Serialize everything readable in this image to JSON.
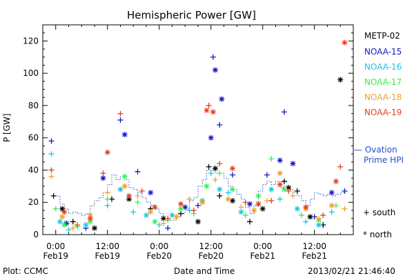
{
  "chart_data": {
    "type": "scatter",
    "title": "Hemispheric Power [GW]",
    "xlabel": "Date and Time",
    "ylabel": "P [GW]",
    "ylim": [
      0,
      130
    ],
    "yticks": [
      0,
      20,
      40,
      60,
      80,
      100,
      120
    ],
    "xlim_hours": [
      -3,
      69
    ],
    "xticks": [
      {
        "hours": 0,
        "time": "0:00",
        "date": "Feb19"
      },
      {
        "hours": 12,
        "time": "12:00",
        "date": "Feb19"
      },
      {
        "hours": 24,
        "time": "0:00",
        "date": "Feb20"
      },
      {
        "hours": 36,
        "time": "12:00",
        "date": "Feb20"
      },
      {
        "hours": 48,
        "time": "0:00",
        "date": "Feb21"
      },
      {
        "hours": 60,
        "time": "12:00",
        "date": "Feb21"
      }
    ],
    "x_unit_note": "hours after 2013-02-19 00:00 UT",
    "series": [
      {
        "name": "METP-02",
        "color": "#000000",
        "points": [
          [
            -0.5,
            24
          ],
          [
            1.5,
            16
          ],
          [
            4,
            8
          ],
          [
            9,
            4
          ],
          [
            13,
            22
          ],
          [
            17,
            22
          ],
          [
            22,
            16
          ],
          [
            25,
            10
          ],
          [
            29,
            13
          ],
          [
            33,
            8
          ],
          [
            35.5,
            42
          ],
          [
            37,
            41
          ],
          [
            38,
            24
          ],
          [
            41,
            21
          ],
          [
            45,
            8
          ],
          [
            48,
            16
          ],
          [
            53,
            33
          ],
          [
            54,
            29
          ],
          [
            56,
            27
          ],
          [
            59,
            11
          ],
          [
            62,
            6
          ],
          [
            66,
            96
          ]
        ]
      },
      {
        "name": "NOAA-15",
        "color": "#1414c8",
        "points": [
          [
            -1,
            58
          ],
          [
            2.5,
            7
          ],
          [
            7,
            4
          ],
          [
            11,
            35
          ],
          [
            15,
            71
          ],
          [
            16,
            62
          ],
          [
            19,
            39
          ],
          [
            22,
            26
          ],
          [
            26,
            4
          ],
          [
            30,
            17
          ],
          [
            33,
            18
          ],
          [
            36,
            60
          ],
          [
            36.5,
            110
          ],
          [
            37,
            102
          ],
          [
            38,
            68
          ],
          [
            38.5,
            84
          ],
          [
            41,
            37
          ],
          [
            45,
            19
          ],
          [
            49,
            37
          ],
          [
            52,
            46
          ],
          [
            53,
            76
          ],
          [
            55,
            44
          ],
          [
            60,
            11
          ],
          [
            64,
            26
          ],
          [
            67,
            27
          ]
        ]
      },
      {
        "name": "NOAA-16",
        "color": "#14c8e6",
        "points": [
          [
            -1,
            50
          ],
          [
            1,
            8
          ],
          [
            3,
            3
          ],
          [
            7,
            6
          ],
          [
            12,
            18
          ],
          [
            15,
            28
          ],
          [
            18,
            14
          ],
          [
            21,
            12
          ],
          [
            24,
            6
          ],
          [
            27,
            12
          ],
          [
            31,
            15
          ],
          [
            34,
            21
          ],
          [
            36,
            38
          ],
          [
            38,
            28
          ],
          [
            40,
            26
          ],
          [
            43,
            14
          ],
          [
            47,
            19
          ],
          [
            50,
            28
          ],
          [
            52,
            22
          ],
          [
            56,
            16
          ],
          [
            58,
            8
          ],
          [
            61,
            6
          ],
          [
            64,
            14
          ]
        ]
      },
      {
        "name": "NOAA-17",
        "color": "#32f050",
        "points": [
          [
            0,
            16
          ],
          [
            2,
            6
          ],
          [
            5,
            5
          ],
          [
            8,
            8
          ],
          [
            12,
            22
          ],
          [
            16,
            36
          ],
          [
            19,
            20
          ],
          [
            23,
            8
          ],
          [
            26,
            9
          ],
          [
            29,
            16
          ],
          [
            32,
            13
          ],
          [
            35,
            30
          ],
          [
            38,
            38
          ],
          [
            41,
            28
          ],
          [
            44,
            12
          ],
          [
            47,
            24
          ],
          [
            50,
            47
          ],
          [
            53,
            28
          ],
          [
            57,
            12
          ],
          [
            61,
            9
          ],
          [
            65,
            18
          ]
        ]
      },
      {
        "name": "NOAA-18",
        "color": "#f0a028",
        "points": [
          [
            -1,
            36
          ],
          [
            1.5,
            11
          ],
          [
            4,
            4
          ],
          [
            8,
            12
          ],
          [
            12,
            26
          ],
          [
            16,
            30
          ],
          [
            19,
            24
          ],
          [
            22,
            14
          ],
          [
            25,
            7
          ],
          [
            28,
            11
          ],
          [
            31,
            22
          ],
          [
            34,
            20
          ],
          [
            37,
            34
          ],
          [
            40,
            22
          ],
          [
            43,
            17
          ],
          [
            46,
            15
          ],
          [
            49,
            21
          ],
          [
            52,
            38
          ],
          [
            55,
            24
          ],
          [
            58,
            16
          ],
          [
            61,
            10
          ],
          [
            64,
            18
          ],
          [
            67,
            16
          ]
        ]
      },
      {
        "name": "NOAA-19",
        "color": "#e63c1e",
        "points": [
          [
            -1,
            40
          ],
          [
            2,
            14
          ],
          [
            5,
            6
          ],
          [
            8,
            10
          ],
          [
            11,
            38
          ],
          [
            12,
            51
          ],
          [
            15,
            75
          ],
          [
            17,
            24
          ],
          [
            20,
            27
          ],
          [
            23,
            17
          ],
          [
            26,
            10
          ],
          [
            29,
            19
          ],
          [
            32,
            15
          ],
          [
            35,
            77
          ],
          [
            35.5,
            80
          ],
          [
            36.5,
            76
          ],
          [
            38,
            44
          ],
          [
            41,
            41
          ],
          [
            44,
            20
          ],
          [
            47,
            19
          ],
          [
            50,
            21
          ],
          [
            52,
            31
          ],
          [
            54,
            27
          ],
          [
            58,
            17
          ],
          [
            62,
            12
          ],
          [
            65,
            33
          ],
          [
            66,
            42
          ],
          [
            67,
            119
          ]
        ]
      }
    ],
    "ovation": {
      "name": "Ovation Prime HPI",
      "color": "#1e50c8",
      "points": [
        [
          0,
          24
        ],
        [
          1,
          19
        ],
        [
          2,
          16
        ],
        [
          3,
          13
        ],
        [
          4,
          14
        ],
        [
          5,
          13
        ],
        [
          6,
          12
        ],
        [
          7,
          13
        ],
        [
          8,
          18
        ],
        [
          9,
          21
        ],
        [
          10,
          23
        ],
        [
          11,
          26
        ],
        [
          12,
          31
        ],
        [
          13,
          37
        ],
        [
          14,
          34
        ],
        [
          15,
          36
        ],
        [
          16,
          34
        ],
        [
          17,
          29
        ],
        [
          18,
          28
        ],
        [
          19,
          26
        ],
        [
          20,
          23
        ],
        [
          21,
          20
        ],
        [
          22,
          18
        ],
        [
          23,
          16
        ],
        [
          24,
          13
        ],
        [
          25,
          10
        ],
        [
          26,
          9
        ],
        [
          27,
          9
        ],
        [
          28,
          11
        ],
        [
          29,
          13
        ],
        [
          30,
          16
        ],
        [
          31,
          21
        ],
        [
          32,
          23
        ],
        [
          33,
          30
        ],
        [
          34,
          34
        ],
        [
          35,
          40
        ],
        [
          36,
          40
        ],
        [
          37,
          38
        ],
        [
          38,
          38
        ],
        [
          39,
          35
        ],
        [
          40,
          30
        ],
        [
          41,
          28
        ],
        [
          42,
          25
        ],
        [
          43,
          22
        ],
        [
          44,
          17
        ],
        [
          45,
          13
        ],
        [
          46,
          18
        ],
        [
          47,
          27
        ],
        [
          48,
          31
        ],
        [
          49,
          33
        ],
        [
          50,
          31
        ],
        [
          51,
          33
        ],
        [
          52,
          29
        ],
        [
          53,
          30
        ],
        [
          54,
          28
        ],
        [
          55,
          26
        ],
        [
          56,
          24
        ],
        [
          57,
          21
        ],
        [
          58,
          18
        ],
        [
          59,
          22
        ],
        [
          60,
          26
        ],
        [
          61,
          25
        ],
        [
          62,
          24
        ],
        [
          63,
          25
        ],
        [
          64,
          24
        ],
        [
          65,
          25
        ],
        [
          66,
          26
        ],
        [
          67,
          27
        ]
      ]
    }
  },
  "legend": {
    "items": [
      {
        "label": "METP-02",
        "color": "#000000"
      },
      {
        "label": "NOAA-15",
        "color": "#1414c8"
      },
      {
        "label": "NOAA-16",
        "color": "#14c8e6"
      },
      {
        "label": "NOAA-17",
        "color": "#32f050"
      },
      {
        "label": "NOAA-18",
        "color": "#f0a028"
      },
      {
        "label": "NOAA-19",
        "color": "#e63c1e"
      }
    ],
    "ovation_line1": "— Ovation",
    "ovation_line2": "Prime HPI",
    "south_label": "+ south",
    "north_label": "* north"
  },
  "footer": {
    "left": "Plot: CCMC",
    "right": "2013/02/21 21:46:40"
  }
}
